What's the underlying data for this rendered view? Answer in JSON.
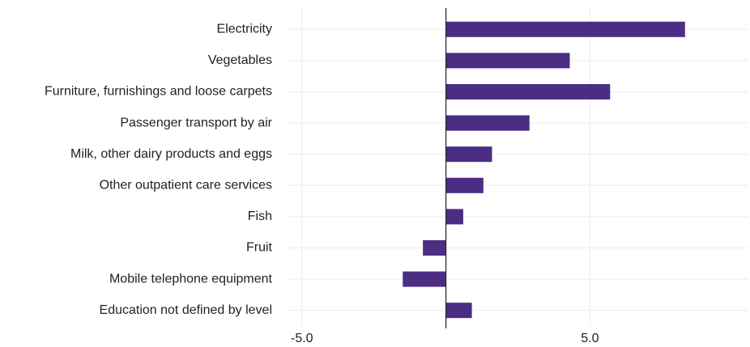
{
  "chart_data": {
    "type": "bar",
    "orientation": "horizontal",
    "categories": [
      "Electricity",
      "Vegetables",
      "Furniture, furnishings and loose carpets",
      "Passenger transport by air",
      "Milk, other dairy products and eggs",
      "Other outpatient care services",
      "Fish",
      "Fruit",
      "Mobile telephone equipment",
      "Education not defined by level"
    ],
    "values": [
      8.3,
      4.3,
      5.7,
      2.9,
      1.6,
      1.3,
      0.6,
      -0.8,
      -1.5,
      0.9
    ],
    "color": "#4b2e83",
    "xlim": [
      -5.5,
      10.5
    ],
    "xticks": [
      {
        "value": -5,
        "label": "-5.0"
      },
      {
        "value": 5,
        "label": "5.0"
      }
    ],
    "grid": true
  }
}
